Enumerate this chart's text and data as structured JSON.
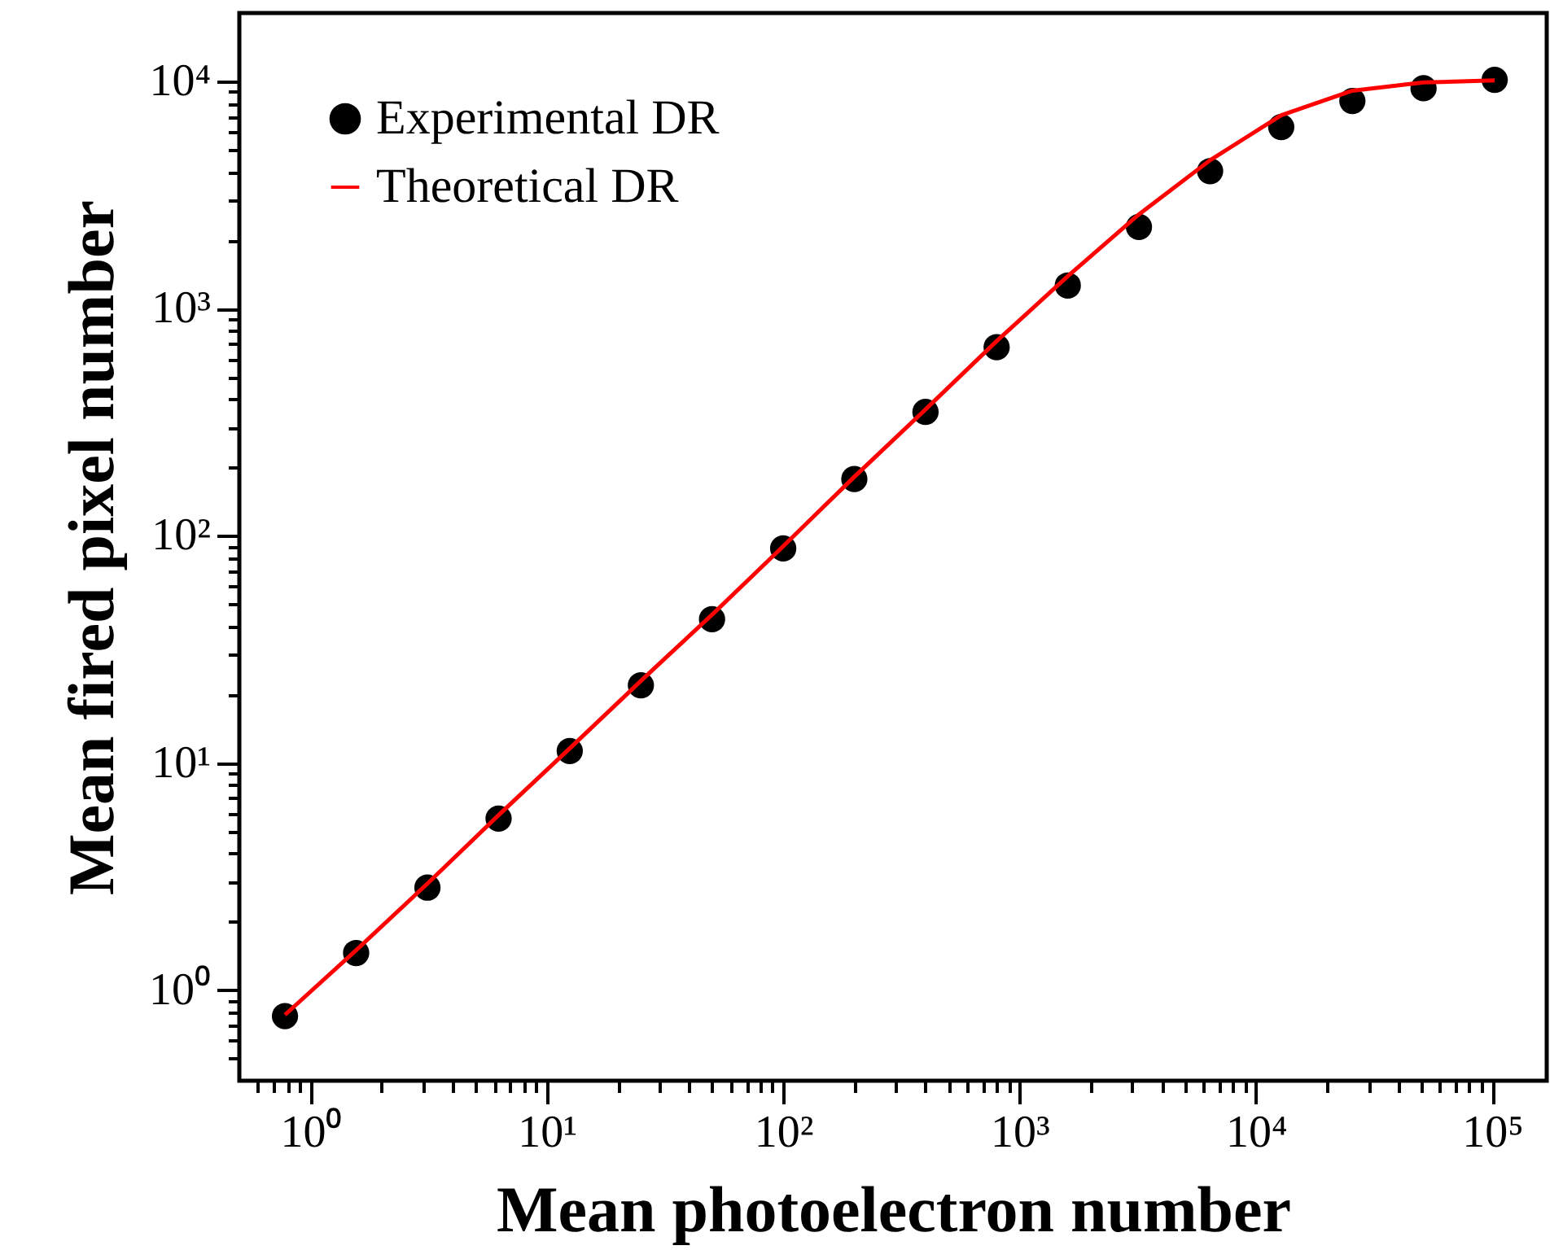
{
  "chart_data": {
    "type": "scatter",
    "xlabel": "Mean photoelectron number",
    "ylabel": "Mean fired pixel number",
    "log": "xy",
    "legend": "top left",
    "grid": false,
    "xlim": [
      0.5,
      170000
    ],
    "ylim": [
      0.4,
      20000
    ],
    "xticks": [
      {
        "value": 0.6,
        "label": null
      },
      {
        "value": 0.7,
        "label": null
      },
      {
        "value": 0.8,
        "label": null
      },
      {
        "value": 0.9,
        "label": null
      },
      {
        "value": 1,
        "label": "10⁰"
      },
      {
        "value": 2,
        "label": null
      },
      {
        "value": 3,
        "label": null
      },
      {
        "value": 4,
        "label": null
      },
      {
        "value": 5,
        "label": null
      },
      {
        "value": 6,
        "label": null
      },
      {
        "value": 7,
        "label": null
      },
      {
        "value": 8,
        "label": null
      },
      {
        "value": 9,
        "label": null
      },
      {
        "value": 10,
        "label": "10¹"
      },
      {
        "value": 20,
        "label": null
      },
      {
        "value": 30,
        "label": null
      },
      {
        "value": 40,
        "label": null
      },
      {
        "value": 50,
        "label": null
      },
      {
        "value": 60,
        "label": null
      },
      {
        "value": 70,
        "label": null
      },
      {
        "value": 80,
        "label": null
      },
      {
        "value": 90,
        "label": null
      },
      {
        "value": 100,
        "label": "10²"
      },
      {
        "value": 200,
        "label": null
      },
      {
        "value": 300,
        "label": null
      },
      {
        "value": 400,
        "label": null
      },
      {
        "value": 500,
        "label": null
      },
      {
        "value": 600,
        "label": null
      },
      {
        "value": 700,
        "label": null
      },
      {
        "value": 800,
        "label": null
      },
      {
        "value": 900,
        "label": null
      },
      {
        "value": 1000,
        "label": "10³"
      },
      {
        "value": 2000,
        "label": null
      },
      {
        "value": 3000,
        "label": null
      },
      {
        "value": 4000,
        "label": null
      },
      {
        "value": 5000,
        "label": null
      },
      {
        "value": 6000,
        "label": null
      },
      {
        "value": 7000,
        "label": null
      },
      {
        "value": 8000,
        "label": null
      },
      {
        "value": 9000,
        "label": null
      },
      {
        "value": 10000,
        "label": "10⁴"
      },
      {
        "value": 20000,
        "label": null
      },
      {
        "value": 30000,
        "label": null
      },
      {
        "value": 40000,
        "label": null
      },
      {
        "value": 50000,
        "label": null
      },
      {
        "value": 60000,
        "label": null
      },
      {
        "value": 70000,
        "label": null
      },
      {
        "value": 80000,
        "label": null
      },
      {
        "value": 90000,
        "label": null
      },
      {
        "value": 100000,
        "label": "10⁵"
      }
    ],
    "yticks": [
      {
        "value": 0.5,
        "label": null
      },
      {
        "value": 0.6,
        "label": null
      },
      {
        "value": 0.7,
        "label": null
      },
      {
        "value": 0.8,
        "label": null
      },
      {
        "value": 0.9,
        "label": null
      },
      {
        "value": 1,
        "label": "10⁰"
      },
      {
        "value": 2,
        "label": null
      },
      {
        "value": 3,
        "label": null
      },
      {
        "value": 4,
        "label": null
      },
      {
        "value": 5,
        "label": null
      },
      {
        "value": 6,
        "label": null
      },
      {
        "value": 7,
        "label": null
      },
      {
        "value": 8,
        "label": null
      },
      {
        "value": 9,
        "label": null
      },
      {
        "value": 10,
        "label": "10¹"
      },
      {
        "value": 20,
        "label": null
      },
      {
        "value": 30,
        "label": null
      },
      {
        "value": 40,
        "label": null
      },
      {
        "value": 50,
        "label": null
      },
      {
        "value": 60,
        "label": null
      },
      {
        "value": 70,
        "label": null
      },
      {
        "value": 80,
        "label": null
      },
      {
        "value": 90,
        "label": null
      },
      {
        "value": 100,
        "label": "10²"
      },
      {
        "value": 200,
        "label": null
      },
      {
        "value": 300,
        "label": null
      },
      {
        "value": 400,
        "label": null
      },
      {
        "value": 500,
        "label": null
      },
      {
        "value": 600,
        "label": null
      },
      {
        "value": 700,
        "label": null
      },
      {
        "value": 800,
        "label": null
      },
      {
        "value": 900,
        "label": null
      },
      {
        "value": 1000,
        "label": "10³"
      },
      {
        "value": 2000,
        "label": null
      },
      {
        "value": 3000,
        "label": null
      },
      {
        "value": 4000,
        "label": null
      },
      {
        "value": 5000,
        "label": null
      },
      {
        "value": 6000,
        "label": null
      },
      {
        "value": 7000,
        "label": null
      },
      {
        "value": 8000,
        "label": null
      },
      {
        "value": 9000,
        "label": null
      },
      {
        "value": 10000,
        "label": "10⁴"
      }
    ],
    "series": [
      {
        "name": "Experimental DR",
        "marker": "circle",
        "color": "#000000",
        "x": [
          0.78,
          1.56,
          3.125,
          6.25,
          12.5,
          25,
          50,
          100,
          200,
          400,
          800,
          1600,
          3200,
          6400,
          12800,
          25600,
          51200,
          102400
        ],
        "values": [
          0.77,
          1.46,
          2.83,
          5.7,
          11.3,
          22,
          43,
          88,
          178,
          351,
          677,
          1265,
          2290,
          4030,
          6300,
          8200,
          9330,
          10160
        ]
      },
      {
        "name": "Theoretical DR",
        "type": "line",
        "color": "#ff0000",
        "x": [
          0.78,
          1.56,
          3.125,
          6.25,
          12.5,
          25,
          50,
          100,
          200,
          400,
          800,
          1600,
          3200,
          6400,
          12800,
          25600,
          51200,
          102400
        ],
        "values": [
          0.78,
          1.5,
          2.95,
          5.9,
          11.6,
          23,
          45,
          90,
          182,
          360,
          720,
          1390,
          2600,
          4500,
          7100,
          9100,
          9900,
          10100
        ]
      }
    ]
  }
}
